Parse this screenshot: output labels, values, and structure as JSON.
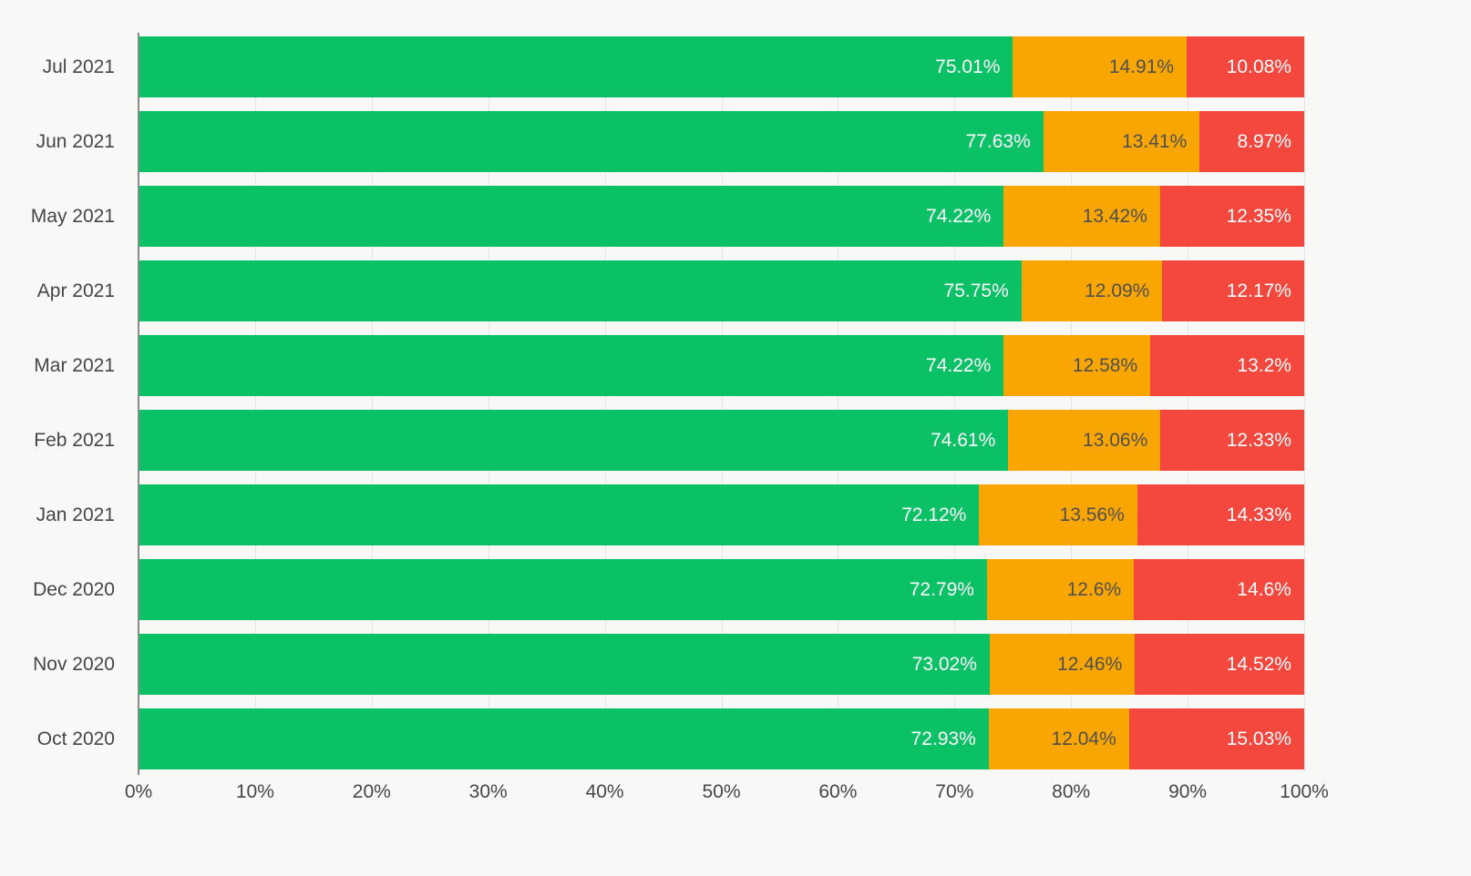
{
  "chart_data": {
    "type": "bar",
    "orientation": "horizontal",
    "stacked": true,
    "title": "",
    "xlabel": "",
    "ylabel": "",
    "categories": [
      "Jul 2021",
      "Jun 2021",
      "May 2021",
      "Apr 2021",
      "Mar 2021",
      "Feb 2021",
      "Jan 2021",
      "Dec 2020",
      "Nov 2020",
      "Oct 2020"
    ],
    "series": [
      {
        "name": "Green",
        "color": "#0bc166",
        "label_color": "#ffffff",
        "values": [
          75.01,
          77.63,
          74.22,
          75.75,
          74.22,
          74.61,
          72.12,
          72.79,
          73.02,
          72.93
        ],
        "labels": [
          "75.01%",
          "77.63%",
          "74.22%",
          "75.75%",
          "74.22%",
          "74.61%",
          "72.12%",
          "72.79%",
          "73.02%",
          "72.93%"
        ]
      },
      {
        "name": "Orange",
        "color": "#f9a602",
        "label_color": "#4f4f4f",
        "values": [
          14.91,
          13.41,
          13.42,
          12.09,
          12.58,
          13.06,
          13.56,
          12.6,
          12.46,
          12.04
        ],
        "labels": [
          "14.91%",
          "13.41%",
          "13.42%",
          "12.09%",
          "12.58%",
          "13.06%",
          "13.56%",
          "12.6%",
          "12.46%",
          "12.04%"
        ]
      },
      {
        "name": "Red",
        "color": "#f4473d",
        "label_color": "#ffffff",
        "values": [
          10.08,
          8.97,
          12.35,
          12.17,
          13.2,
          12.33,
          14.33,
          14.6,
          14.52,
          15.03
        ],
        "labels": [
          "10.08%",
          "8.97%",
          "12.35%",
          "12.17%",
          "13.2%",
          "12.33%",
          "14.33%",
          "14.6%",
          "14.52%",
          "15.03%"
        ]
      }
    ],
    "x_ticks": [
      "0%",
      "10%",
      "20%",
      "30%",
      "40%",
      "50%",
      "60%",
      "70%",
      "80%",
      "90%",
      "100%"
    ],
    "xlim": [
      0,
      100
    ],
    "grid": true,
    "legend": "none",
    "colors": {
      "background": "#f8f8f6",
      "gridline": "#e5e5e3",
      "axis_line": "#8a8a8a",
      "tick_label": "#464646",
      "category_label": "#464646"
    }
  }
}
